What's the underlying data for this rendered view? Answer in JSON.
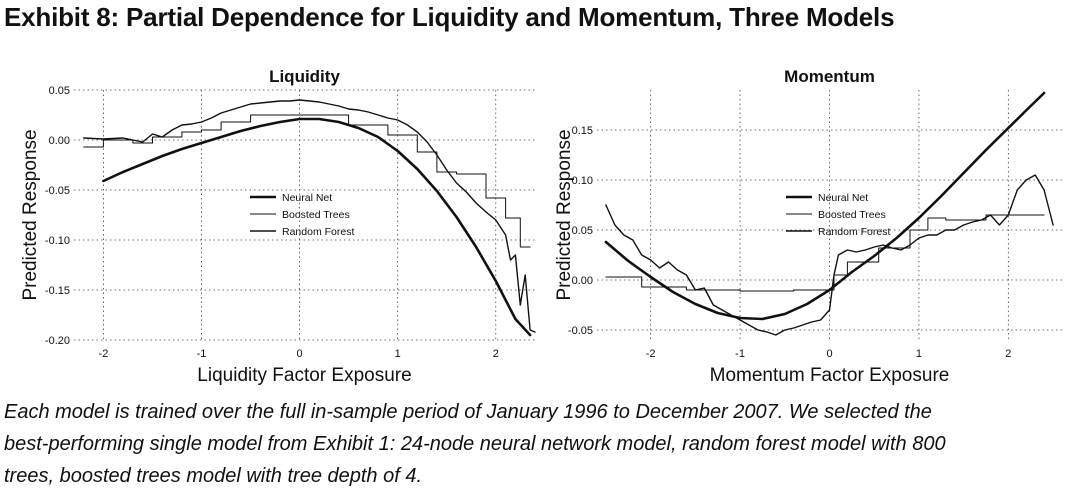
{
  "exhibit_title": "Exhibit 8: Partial Dependence for Liquidity and Momentum, Three Models",
  "caption_lines": [
    "Each model is trained over the full in-sample period of January 1996 to December 2007. We selected the",
    "best-performing single model from Exhibit 1: 24-node neural network model, random forest model with 800",
    "trees, boosted trees model with tree depth of 4."
  ],
  "chart_data": [
    {
      "type": "line",
      "title": "Liquidity",
      "xlabel": "Liquidity Factor Exposure",
      "ylabel": "Predicted Response",
      "xlim": [
        -2.3,
        2.4
      ],
      "ylim": [
        -0.2,
        0.05
      ],
      "xticks": [
        -2,
        -1,
        0,
        1,
        2
      ],
      "xtick_labels": [
        "-2",
        "-1",
        "0",
        "1",
        "2"
      ],
      "yticks": [
        -0.2,
        -0.15,
        -0.1,
        -0.05,
        0.0,
        0.05
      ],
      "ytick_labels": [
        "-0.20",
        "-0.15",
        "-0.10",
        "-0.05",
        "0.00",
        "0.05"
      ],
      "grid": "dotted",
      "legend_position": "center",
      "series": [
        {
          "name": "Neural Net",
          "style": "solid-thick",
          "x": [
            -2.0,
            -1.8,
            -1.6,
            -1.4,
            -1.2,
            -1.0,
            -0.8,
            -0.6,
            -0.4,
            -0.2,
            0.0,
            0.2,
            0.4,
            0.6,
            0.8,
            1.0,
            1.2,
            1.4,
            1.6,
            1.8,
            2.0,
            2.2,
            2.35
          ],
          "y": [
            -0.041,
            -0.032,
            -0.024,
            -0.016,
            -0.009,
            -0.003,
            0.003,
            0.009,
            0.014,
            0.018,
            0.021,
            0.021,
            0.018,
            0.012,
            0.003,
            -0.011,
            -0.029,
            -0.051,
            -0.077,
            -0.107,
            -0.141,
            -0.179,
            -0.195
          ]
        },
        {
          "name": "Boosted Trees",
          "style": "solid-thin-steps",
          "x": [
            -2.2,
            -2.0,
            -2.0,
            -1.7,
            -1.7,
            -1.5,
            -1.5,
            -1.2,
            -1.2,
            -1.0,
            -1.0,
            -0.8,
            -0.8,
            -0.5,
            -0.5,
            0.0,
            0.0,
            0.5,
            0.5,
            0.9,
            0.9,
            1.2,
            1.2,
            1.4,
            1.4,
            1.6,
            1.6,
            1.9,
            1.9,
            2.1,
            2.1,
            2.25,
            2.25,
            2.35
          ],
          "y": [
            -0.007,
            -0.007,
            0.0,
            0.0,
            -0.003,
            -0.003,
            0.003,
            0.003,
            0.008,
            0.008,
            0.01,
            0.01,
            0.018,
            0.018,
            0.025,
            0.025,
            0.025,
            0.025,
            0.015,
            0.015,
            0.005,
            0.005,
            -0.012,
            -0.012,
            -0.032,
            -0.032,
            -0.034,
            -0.034,
            -0.058,
            -0.058,
            -0.078,
            -0.078,
            -0.107,
            -0.107
          ]
        },
        {
          "name": "Random Forest",
          "style": "solid-jagged",
          "x": [
            -2.2,
            -2.0,
            -1.8,
            -1.6,
            -1.5,
            -1.4,
            -1.3,
            -1.2,
            -1.1,
            -1.0,
            -0.9,
            -0.8,
            -0.7,
            -0.6,
            -0.5,
            -0.4,
            -0.3,
            -0.2,
            -0.1,
            0.0,
            0.1,
            0.2,
            0.3,
            0.4,
            0.5,
            0.6,
            0.7,
            0.8,
            0.9,
            1.0,
            1.1,
            1.2,
            1.3,
            1.4,
            1.5,
            1.6,
            1.7,
            1.8,
            1.9,
            2.0,
            2.1,
            2.15,
            2.2,
            2.25,
            2.3,
            2.35,
            2.4
          ],
          "y": [
            0.002,
            0.001,
            0.002,
            -0.002,
            0.006,
            0.003,
            0.01,
            0.015,
            0.016,
            0.018,
            0.022,
            0.027,
            0.03,
            0.033,
            0.036,
            0.037,
            0.038,
            0.039,
            0.039,
            0.04,
            0.039,
            0.038,
            0.036,
            0.034,
            0.031,
            0.03,
            0.028,
            0.025,
            0.022,
            0.02,
            0.015,
            0.008,
            -0.002,
            -0.015,
            -0.03,
            -0.043,
            -0.052,
            -0.063,
            -0.072,
            -0.08,
            -0.095,
            -0.12,
            -0.115,
            -0.165,
            -0.135,
            -0.19,
            -0.192
          ]
        }
      ]
    },
    {
      "type": "line",
      "title": "Momentum",
      "xlabel": "Momentum Factor Exposure",
      "ylabel": "Predicted Response",
      "xlim": [
        -2.6,
        2.6
      ],
      "ylim": [
        -0.06,
        0.19
      ],
      "xticks": [
        -2,
        -1,
        0,
        1,
        2
      ],
      "xtick_labels": [
        "-2",
        "-1",
        "0",
        "1",
        "2"
      ],
      "yticks": [
        -0.05,
        0.0,
        0.05,
        0.1,
        0.15
      ],
      "ytick_labels": [
        "-0.05",
        "0.00",
        "0.05",
        "0.10",
        "0.15"
      ],
      "grid": "dotted",
      "legend_position": "center",
      "series": [
        {
          "name": "Neural Net",
          "style": "solid-thick",
          "x": [
            -2.5,
            -2.25,
            -2.0,
            -1.75,
            -1.5,
            -1.25,
            -1.0,
            -0.75,
            -0.5,
            -0.25,
            0.0,
            0.25,
            0.5,
            0.75,
            1.0,
            1.25,
            1.5,
            1.75,
            2.0,
            2.25,
            2.4
          ],
          "y": [
            0.038,
            0.019,
            0.003,
            -0.012,
            -0.024,
            -0.033,
            -0.038,
            -0.039,
            -0.034,
            -0.024,
            -0.01,
            0.008,
            0.024,
            0.042,
            0.062,
            0.084,
            0.107,
            0.13,
            0.152,
            0.174,
            0.187
          ]
        },
        {
          "name": "Boosted Trees",
          "style": "solid-thin-steps",
          "x": [
            -2.5,
            -2.1,
            -2.1,
            -1.6,
            -1.6,
            -1.0,
            -1.0,
            -0.4,
            -0.4,
            0.05,
            0.05,
            0.2,
            0.2,
            0.55,
            0.55,
            0.9,
            0.9,
            1.1,
            1.1,
            1.3,
            1.3,
            1.75,
            1.75,
            2.2,
            2.2,
            2.4
          ],
          "y": [
            0.003,
            0.003,
            -0.007,
            -0.007,
            -0.01,
            -0.01,
            -0.011,
            -0.011,
            -0.01,
            -0.01,
            0.005,
            0.005,
            0.018,
            0.018,
            0.032,
            0.032,
            0.05,
            0.05,
            0.062,
            0.062,
            0.06,
            0.06,
            0.065,
            0.065,
            0.065,
            0.065
          ]
        },
        {
          "name": "Random Forest",
          "style": "solid-jagged",
          "x": [
            -2.5,
            -2.4,
            -2.3,
            -2.2,
            -2.1,
            -2.0,
            -1.9,
            -1.8,
            -1.7,
            -1.6,
            -1.5,
            -1.4,
            -1.3,
            -1.2,
            -1.1,
            -1.0,
            -0.9,
            -0.8,
            -0.7,
            -0.6,
            -0.5,
            -0.4,
            -0.3,
            -0.2,
            -0.1,
            0.0,
            0.05,
            0.1,
            0.2,
            0.3,
            0.4,
            0.5,
            0.6,
            0.7,
            0.8,
            0.9,
            1.0,
            1.1,
            1.2,
            1.3,
            1.4,
            1.5,
            1.6,
            1.7,
            1.8,
            1.9,
            2.0,
            2.1,
            2.2,
            2.3,
            2.4,
            2.5
          ],
          "y": [
            0.075,
            0.055,
            0.045,
            0.04,
            0.025,
            0.02,
            0.012,
            0.018,
            0.01,
            0.005,
            -0.01,
            -0.008,
            -0.025,
            -0.03,
            -0.035,
            -0.04,
            -0.045,
            -0.05,
            -0.052,
            -0.055,
            -0.05,
            -0.048,
            -0.045,
            -0.042,
            -0.04,
            -0.03,
            0.005,
            0.025,
            0.03,
            0.028,
            0.03,
            0.033,
            0.035,
            0.032,
            0.03,
            0.035,
            0.042,
            0.045,
            0.045,
            0.05,
            0.05,
            0.055,
            0.058,
            0.06,
            0.065,
            0.055,
            0.065,
            0.09,
            0.1,
            0.105,
            0.09,
            0.055
          ]
        }
      ]
    }
  ]
}
